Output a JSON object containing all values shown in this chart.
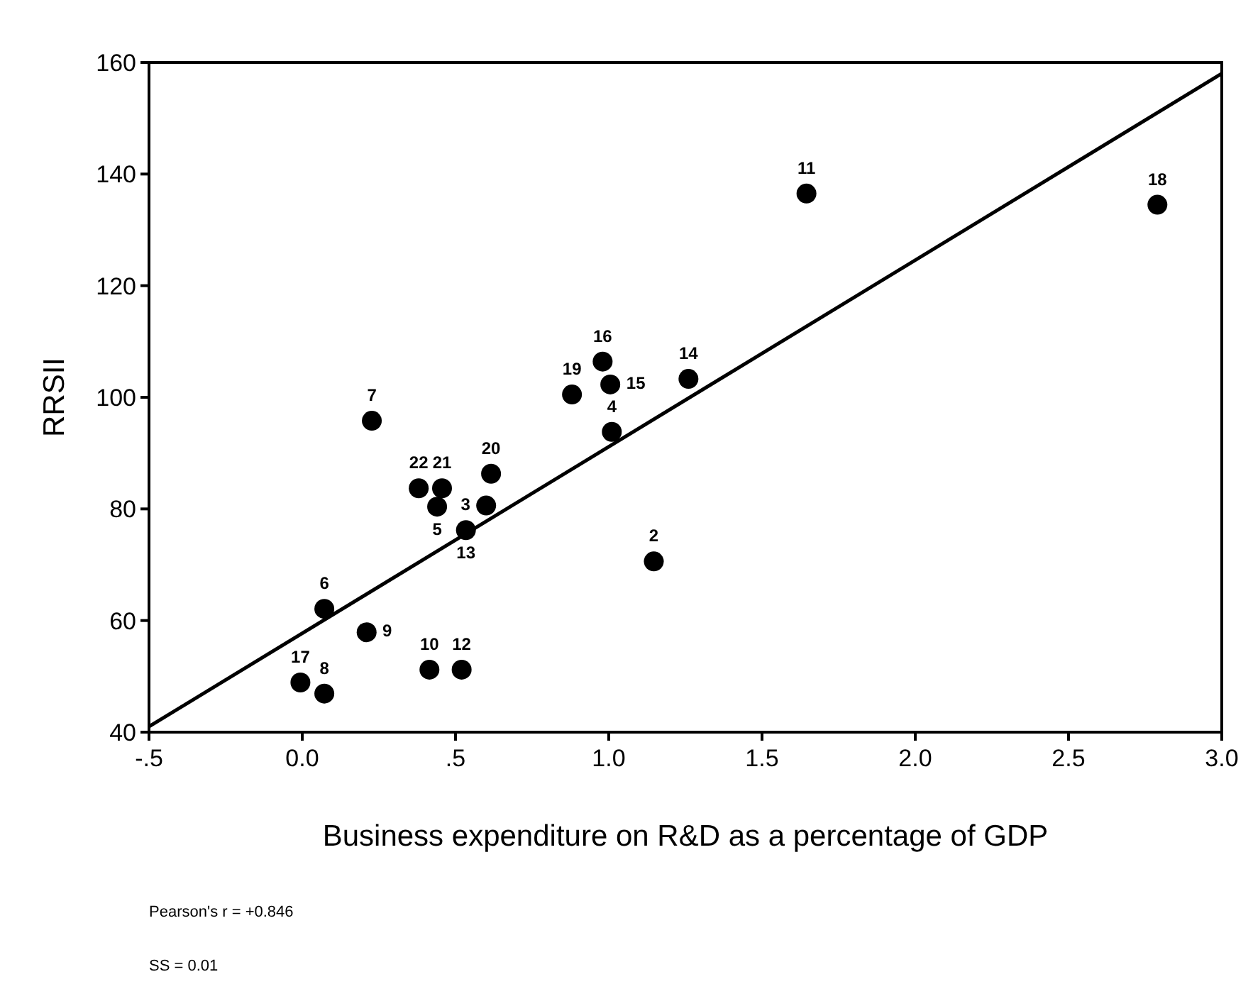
{
  "chart_data": {
    "type": "scatter",
    "xlabel": "Business expenditure on R&D as a percentage of GDP",
    "ylabel": "RRSII",
    "xlim": [
      -0.5,
      3.0
    ],
    "ylim": [
      40,
      160
    ],
    "xticks": [
      {
        "value": -0.5,
        "label": "-.5"
      },
      {
        "value": 0,
        "label": "0.0"
      },
      {
        "value": 0.5,
        "label": ".5"
      },
      {
        "value": 1,
        "label": "1.0"
      },
      {
        "value": 1.5,
        "label": "1.5"
      },
      {
        "value": 2,
        "label": "2.0"
      },
      {
        "value": 2.5,
        "label": "2.5"
      },
      {
        "value": 3,
        "label": "3.0"
      }
    ],
    "yticks": [
      40,
      60,
      80,
      100,
      120,
      140,
      160
    ],
    "grid": false,
    "marker": "circle",
    "series": [
      {
        "type": "scatter",
        "color": "#000000",
        "x": [
          1.147,
          0.6,
          1.01,
          0.44,
          0.072,
          0.227,
          0.072,
          0.21,
          0.415,
          1.645,
          0.52,
          0.534,
          1.26,
          1.005,
          0.98,
          -0.006,
          2.79,
          0.88,
          0.616,
          0.456,
          0.38
        ],
        "values": [
          70.6,
          80.6,
          93.8,
          80.4,
          62.1,
          95.8,
          46.9,
          57.9,
          51.2,
          136.5,
          51.2,
          76.2,
          103.3,
          102.3,
          106.4,
          48.9,
          134.5,
          100.5,
          86.3,
          83.7,
          83.7
        ]
      },
      {
        "type": "line",
        "color": "#000000",
        "x": [
          -0.5,
          3.0
        ],
        "values": [
          41,
          158
        ],
        "marker": "none",
        "line_style": "solid"
      }
    ],
    "annotations": [
      {
        "text": "2",
        "x": 1.147,
        "y": 70.6
      },
      {
        "text": "3",
        "x": 0.6,
        "y": 80.6
      },
      {
        "text": "4",
        "x": 1.01,
        "y": 93.8
      },
      {
        "text": "5",
        "x": 0.44,
        "y": 80.4
      },
      {
        "text": "6",
        "x": 0.072,
        "y": 62.1
      },
      {
        "text": "7",
        "x": 0.227,
        "y": 95.8
      },
      {
        "text": "8",
        "x": 0.072,
        "y": 46.9
      },
      {
        "text": "9",
        "x": 0.21,
        "y": 57.9
      },
      {
        "text": "10",
        "x": 0.415,
        "y": 51.2
      },
      {
        "text": "11",
        "x": 1.645,
        "y": 136.5
      },
      {
        "text": "12",
        "x": 0.52,
        "y": 51.2
      },
      {
        "text": "13",
        "x": 0.534,
        "y": 76.2
      },
      {
        "text": "14",
        "x": 1.26,
        "y": 103.3
      },
      {
        "text": "15",
        "x": 1.005,
        "y": 102.3
      },
      {
        "text": "16",
        "x": 0.98,
        "y": 106.4
      },
      {
        "text": "17",
        "x": -0.006,
        "y": 48.9
      },
      {
        "text": "18",
        "x": 2.79,
        "y": 134.5
      },
      {
        "text": "19",
        "x": 0.88,
        "y": 100.5
      },
      {
        "text": "20",
        "x": 0.616,
        "y": 86.3
      },
      {
        "text": "21",
        "x": 0.456,
        "y": 83.7
      },
      {
        "text": "22",
        "x": 0.38,
        "y": 83.7
      },
      "Pearson's r = +0.846",
      "SS = 0.01"
    ]
  }
}
